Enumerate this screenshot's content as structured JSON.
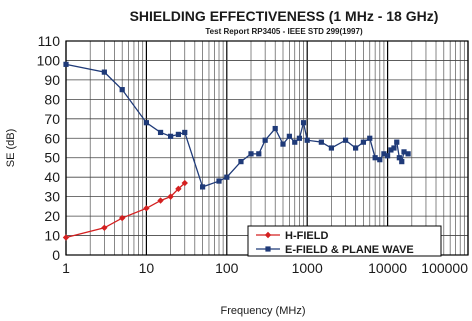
{
  "chart_data": {
    "type": "line",
    "title": "SHIELDING EFFECTIVENESS (1 MHz - 18 GHz)",
    "subtitle": "Test Report RP3405 - IEEE STD 299(1997)",
    "xlabel": "Frequency (MHz)",
    "ylabel": "SE (dB)",
    "x_scale": "log",
    "xlim": [
      1,
      100000
    ],
    "ylim": [
      0,
      110
    ],
    "x_ticks": [
      1,
      10,
      100,
      1000,
      10000,
      100000
    ],
    "x_tick_labels": [
      "1",
      "10",
      "100",
      "1000",
      "10000",
      "100000"
    ],
    "y_ticks": [
      0,
      10,
      20,
      30,
      40,
      50,
      60,
      70,
      80,
      90,
      100,
      110
    ],
    "grid": true,
    "legend_position": "bottom-right",
    "series": [
      {
        "name": "H-FIELD",
        "color": "#d42020",
        "marker": "diamond",
        "x": [
          1,
          3,
          5,
          10,
          15,
          20,
          25,
          30
        ],
        "y": [
          9,
          14,
          19,
          24,
          28,
          30,
          34,
          37
        ]
      },
      {
        "name": "E-FIELD & PLANE WAVE",
        "color": "#1f3a78",
        "marker": "square",
        "x": [
          1,
          3,
          5,
          10,
          15,
          20,
          25,
          30,
          50,
          80,
          100,
          150,
          200,
          250,
          300,
          400,
          500,
          600,
          700,
          800,
          900,
          1000,
          1500,
          2000,
          3000,
          4000,
          5000,
          6000,
          7000,
          8000,
          9000,
          10000,
          11000,
          12000,
          13000,
          14000,
          15000,
          16000,
          18000
        ],
        "y": [
          98,
          94,
          85,
          68,
          63,
          61,
          62,
          63,
          35,
          38,
          40,
          48,
          52,
          52,
          59,
          65,
          57,
          61,
          58,
          60,
          68,
          59,
          58,
          55,
          59,
          55,
          58,
          60,
          50,
          49,
          52,
          51,
          54,
          55,
          58,
          50,
          48,
          53,
          52
        ]
      }
    ]
  }
}
